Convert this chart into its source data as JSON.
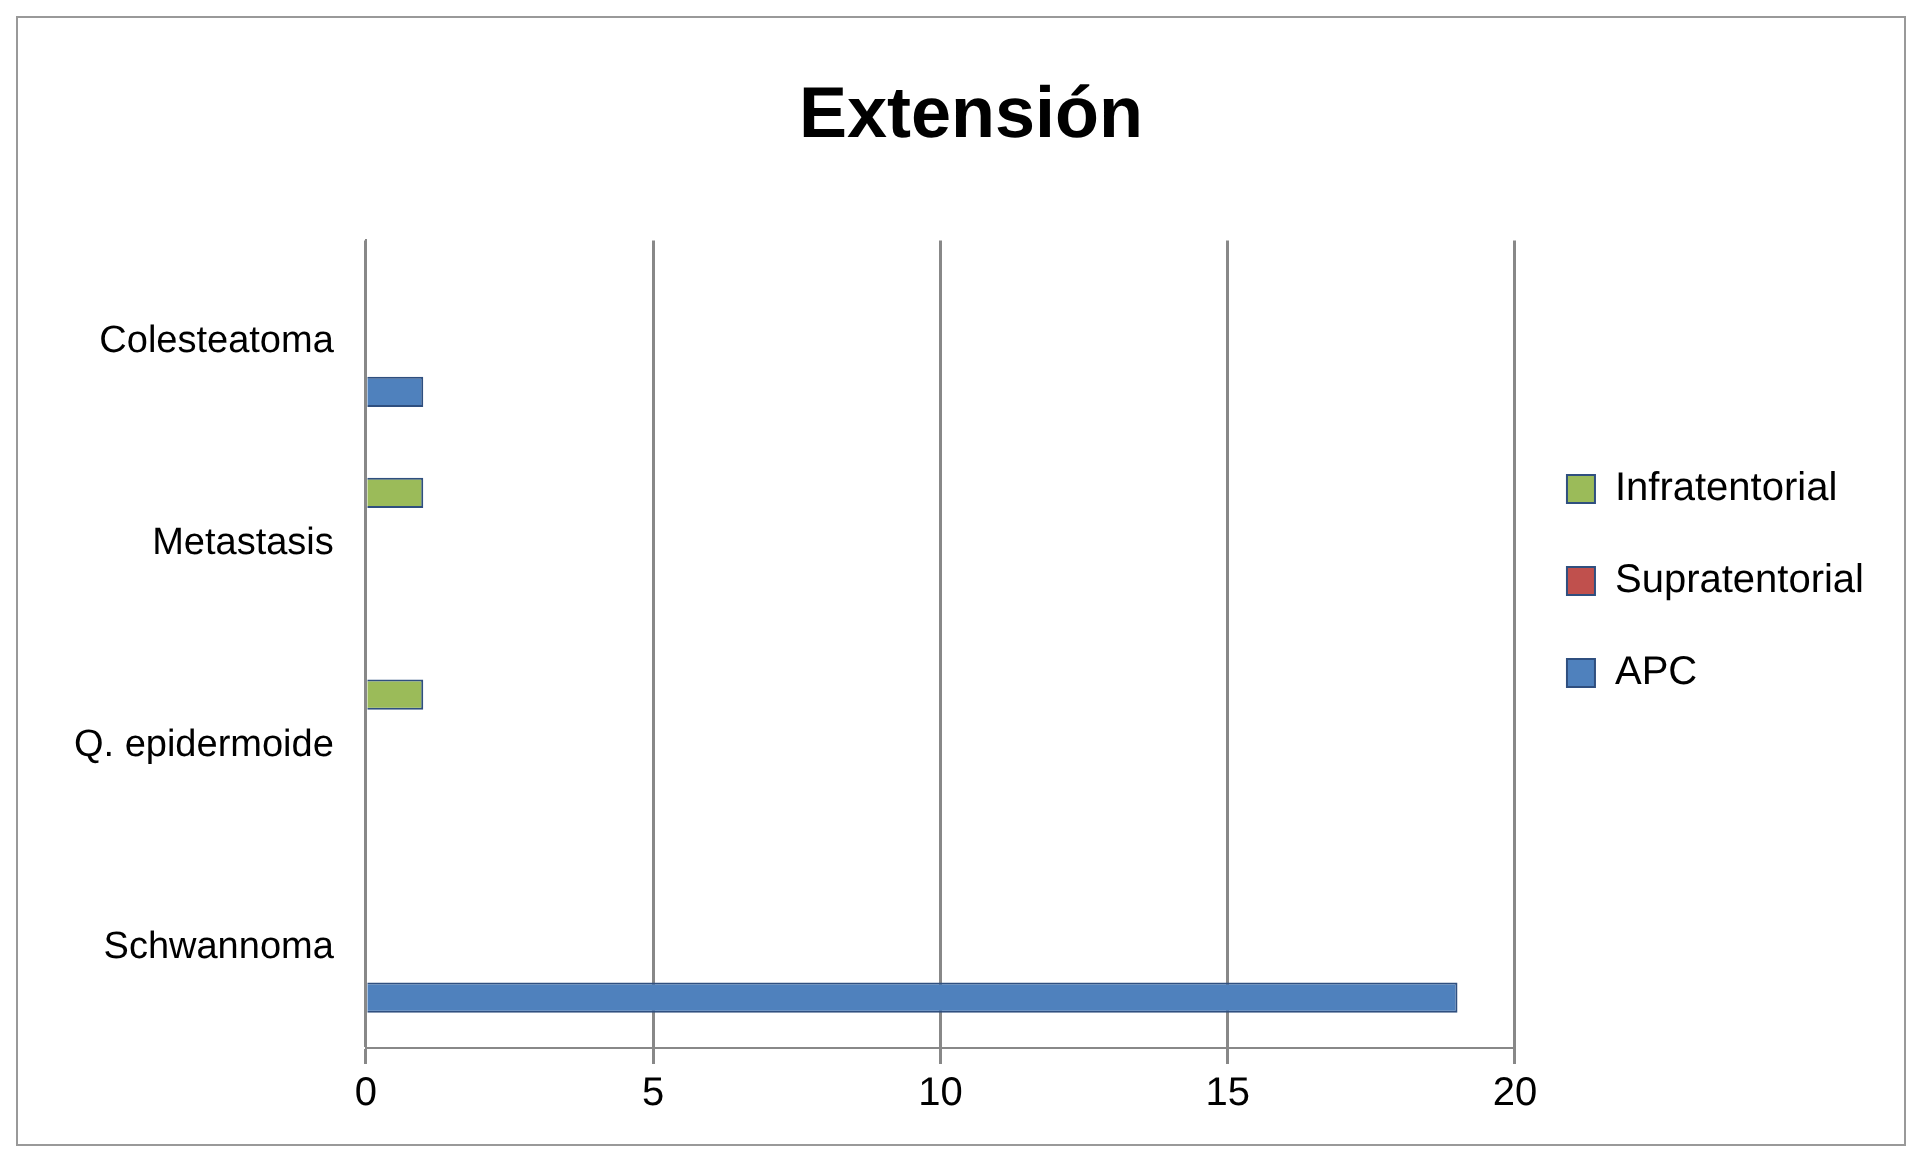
{
  "chart_data": {
    "type": "bar",
    "orientation": "horizontal",
    "title": "Extensión",
    "categories": [
      "Colesteatoma",
      "Metastasis",
      "Q. epidermoide",
      "Schwannoma"
    ],
    "series": [
      {
        "name": "Infratentorial",
        "color": "#9bbb59",
        "values": [
          0,
          1,
          1,
          0
        ]
      },
      {
        "name": "Supratentorial",
        "color": "#c0504d",
        "values": [
          0,
          0,
          0,
          0
        ]
      },
      {
        "name": "APC",
        "color": "#4f81bd",
        "values": [
          1,
          0,
          0,
          19
        ]
      }
    ],
    "xlim": [
      0,
      20
    ],
    "xticks": [
      0,
      5,
      10,
      15,
      20
    ],
    "grid": "x",
    "legend": "right"
  }
}
